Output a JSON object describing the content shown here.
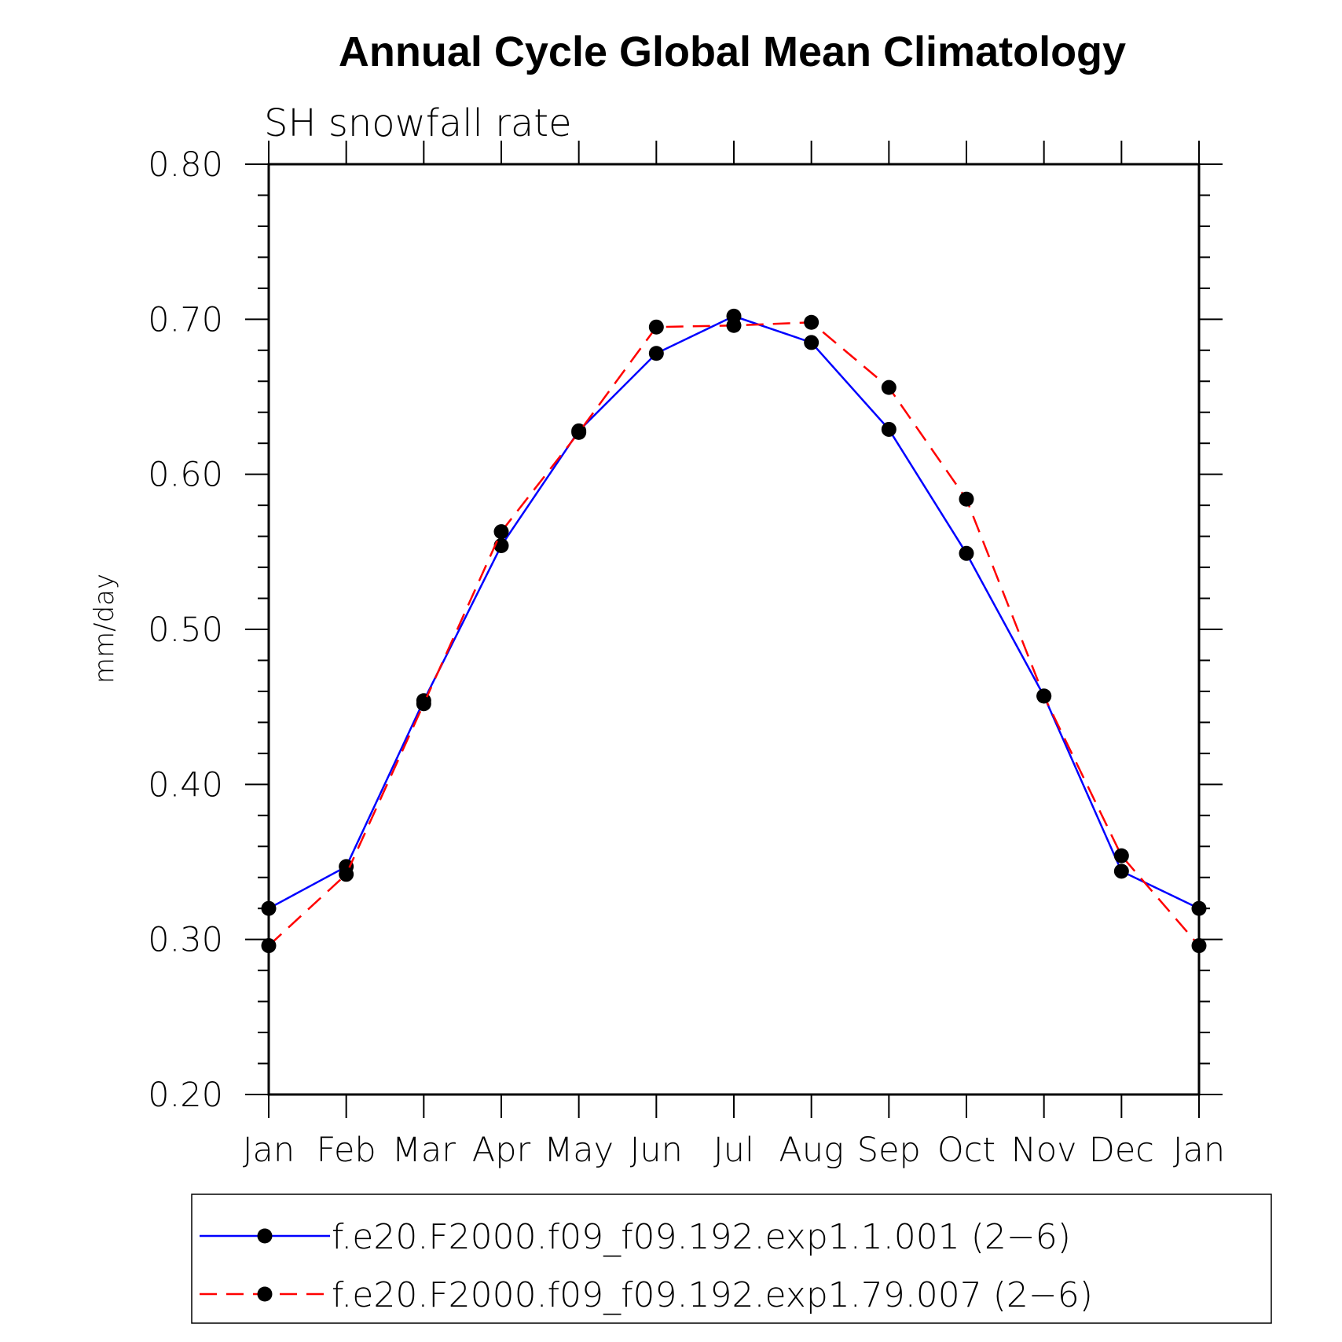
{
  "chart_data": {
    "type": "line",
    "title": "Annual Cycle Global Mean Climatology",
    "subtitle": "SH snowfall rate",
    "xlabel": "",
    "ylabel": "mm/day",
    "categories": [
      "Jan",
      "Feb",
      "Mar",
      "Apr",
      "May",
      "Jun",
      "Jul",
      "Aug",
      "Sep",
      "Oct",
      "Nov",
      "Dec",
      "Jan"
    ],
    "ylim": [
      0.2,
      0.8
    ],
    "yticks": [
      "0.20",
      "0.30",
      "0.40",
      "0.50",
      "0.60",
      "0.70",
      "0.80"
    ],
    "grid": false,
    "legend_position": "bottom",
    "series": [
      {
        "name": "f.e20.F2000.f09_f09.192.exp1.1.001 (2−6)",
        "color": "#0000ff",
        "line_style": "solid",
        "marker": "filled-circle",
        "values": [
          0.32,
          0.347,
          0.454,
          0.554,
          0.628,
          0.678,
          0.702,
          0.685,
          0.629,
          0.549,
          0.457,
          0.344,
          0.32
        ]
      },
      {
        "name": "f.e20.F2000.f09_f09.192.exp1.79.007 (2−6)",
        "color": "#ff0000",
        "line_style": "dashed",
        "marker": "filled-circle",
        "values": [
          0.296,
          0.342,
          0.452,
          0.563,
          0.627,
          0.695,
          0.696,
          0.698,
          0.656,
          0.584,
          0.457,
          0.354,
          0.296
        ]
      }
    ]
  }
}
